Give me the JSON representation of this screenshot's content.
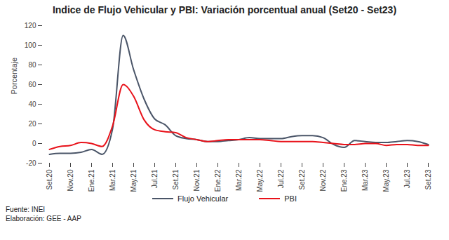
{
  "chart_data": {
    "type": "line",
    "title": "Indice de Flujo Vehicular y PBI: Variación porcentual anual (Set20 - Set23)",
    "y_label": "Porcentaje",
    "notes": [
      "Fuente: INEI",
      "Elaboración: GEE - AAP"
    ],
    "categories": [
      "Set.20",
      null,
      "Nov.20",
      null,
      "Ene.21",
      null,
      "Mar.21",
      null,
      "May.21",
      null,
      "Jul.21",
      null,
      "Set.21",
      null,
      "Nov.21",
      null,
      "Ene.22",
      null,
      "Mar.22",
      null,
      "May.22",
      null,
      "Jul.22",
      null,
      "Set.22",
      null,
      "Nov.22",
      null,
      "Ene.23",
      null,
      "Mar.23",
      null,
      "May.23",
      null,
      "Jul.23",
      null,
      "Set.23"
    ],
    "series": [
      {
        "name": "Flujo Vehicular",
        "color": "#4a5568",
        "values": [
          -11,
          -10,
          -10,
          -9,
          -6,
          -11,
          15,
          110,
          75,
          45,
          25,
          19,
          8,
          5,
          4,
          2,
          2,
          3,
          4,
          6,
          5,
          5,
          5,
          7,
          8,
          8,
          6,
          -1,
          -4,
          3,
          2,
          1,
          1,
          2,
          3,
          2,
          -1
        ]
      },
      {
        "name": "PBI",
        "color": "#e8121a",
        "values": [
          -6,
          -3,
          -2,
          1,
          0,
          -3,
          18,
          60,
          48,
          24,
          14,
          12,
          11,
          6,
          4,
          2,
          3,
          4,
          4,
          4,
          4,
          3,
          2,
          2,
          2,
          2,
          1,
          0,
          -1,
          -1,
          0,
          0,
          -2,
          -1,
          -1,
          -2,
          -2
        ]
      }
    ],
    "ylim": [
      -20,
      120
    ],
    "yticks": [
      -20,
      0,
      20,
      40,
      60,
      80,
      100,
      120
    ],
    "grid": false,
    "legend": "bottom"
  }
}
